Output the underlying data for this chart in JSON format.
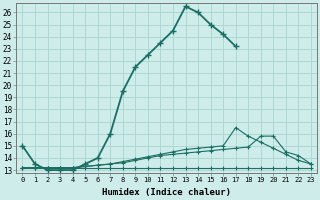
{
  "xlabel": "Humidex (Indice chaleur)",
  "xlim": [
    -0.5,
    23.5
  ],
  "ylim": [
    12.8,
    26.8
  ],
  "xticks": [
    0,
    1,
    2,
    3,
    4,
    5,
    6,
    7,
    8,
    9,
    10,
    11,
    12,
    13,
    14,
    15,
    16,
    17,
    18,
    19,
    20,
    21,
    22,
    23
  ],
  "yticks": [
    13,
    14,
    15,
    16,
    17,
    18,
    19,
    20,
    21,
    22,
    23,
    24,
    25,
    26
  ],
  "bg_color": "#ceecea",
  "grid_color": "#aed8d4",
  "line_color": "#1a6e63",
  "line1_x": [
    0,
    1,
    2,
    3,
    4,
    5,
    6,
    7,
    8,
    9,
    10,
    11,
    12,
    13,
    14,
    15,
    16,
    17
  ],
  "line1_y": [
    15.0,
    13.5,
    13.0,
    13.0,
    13.0,
    13.5,
    14.0,
    16.0,
    19.5,
    21.5,
    22.5,
    23.5,
    24.5,
    26.5,
    26.0,
    25.0,
    24.2,
    23.2
  ],
  "line2_x": [
    0,
    1,
    2,
    3,
    4,
    5,
    6,
    7,
    8,
    9,
    10,
    11,
    12,
    13,
    14,
    15,
    16,
    17,
    18,
    19,
    20,
    21,
    22,
    23
  ],
  "line2_y": [
    13.2,
    13.2,
    13.2,
    13.2,
    13.2,
    13.2,
    13.2,
    13.2,
    13.2,
    13.2,
    13.2,
    13.2,
    13.2,
    13.2,
    13.2,
    13.2,
    13.2,
    13.2,
    13.2,
    13.2,
    13.2,
    13.2,
    13.2,
    13.2
  ],
  "line3_x": [
    0,
    1,
    2,
    3,
    4,
    5,
    6,
    7,
    8,
    9,
    10,
    11,
    12,
    13,
    14,
    15,
    16,
    17,
    18,
    19,
    20,
    21,
    22,
    23
  ],
  "line3_y": [
    13.2,
    13.2,
    13.2,
    13.2,
    13.2,
    13.3,
    13.4,
    13.5,
    13.7,
    13.9,
    14.1,
    14.3,
    14.5,
    14.7,
    14.8,
    14.9,
    15.0,
    16.5,
    15.8,
    15.3,
    14.8,
    14.3,
    13.8,
    13.5
  ],
  "line4_x": [
    0,
    1,
    2,
    3,
    4,
    5,
    6,
    7,
    8,
    9,
    10,
    11,
    12,
    13,
    14,
    15,
    16,
    17,
    18,
    19,
    20,
    21,
    22,
    23
  ],
  "line4_y": [
    13.2,
    13.2,
    13.2,
    13.2,
    13.2,
    13.3,
    13.4,
    13.5,
    13.6,
    13.8,
    14.0,
    14.2,
    14.3,
    14.4,
    14.5,
    14.6,
    14.7,
    14.8,
    14.9,
    15.8,
    15.8,
    14.5,
    14.2,
    13.5
  ]
}
